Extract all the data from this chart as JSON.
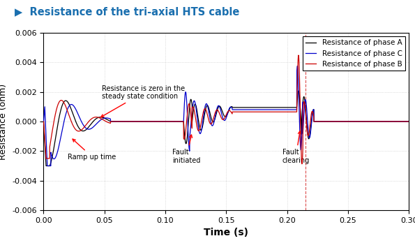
{
  "title": "Resistance of the tri-axial HTS cable",
  "xlabel": "Time (s)",
  "ylabel": "Resistance (ohm)",
  "xlim": [
    0.0,
    0.3
  ],
  "ylim": [
    -0.006,
    0.006
  ],
  "yticks": [
    -0.006,
    -0.004,
    -0.002,
    0.0,
    0.002,
    0.004,
    0.006
  ],
  "xticks": [
    0.0,
    0.05,
    0.1,
    0.15,
    0.2,
    0.25,
    0.3
  ],
  "legend": [
    "Resistance of phase A",
    "Resistance of phase B",
    "Resistance of phase C"
  ],
  "colors": [
    "#000000",
    "#cc0000",
    "#0000cc"
  ],
  "fault_clearing_vline_x": 0.215,
  "background_color": "#ffffff"
}
